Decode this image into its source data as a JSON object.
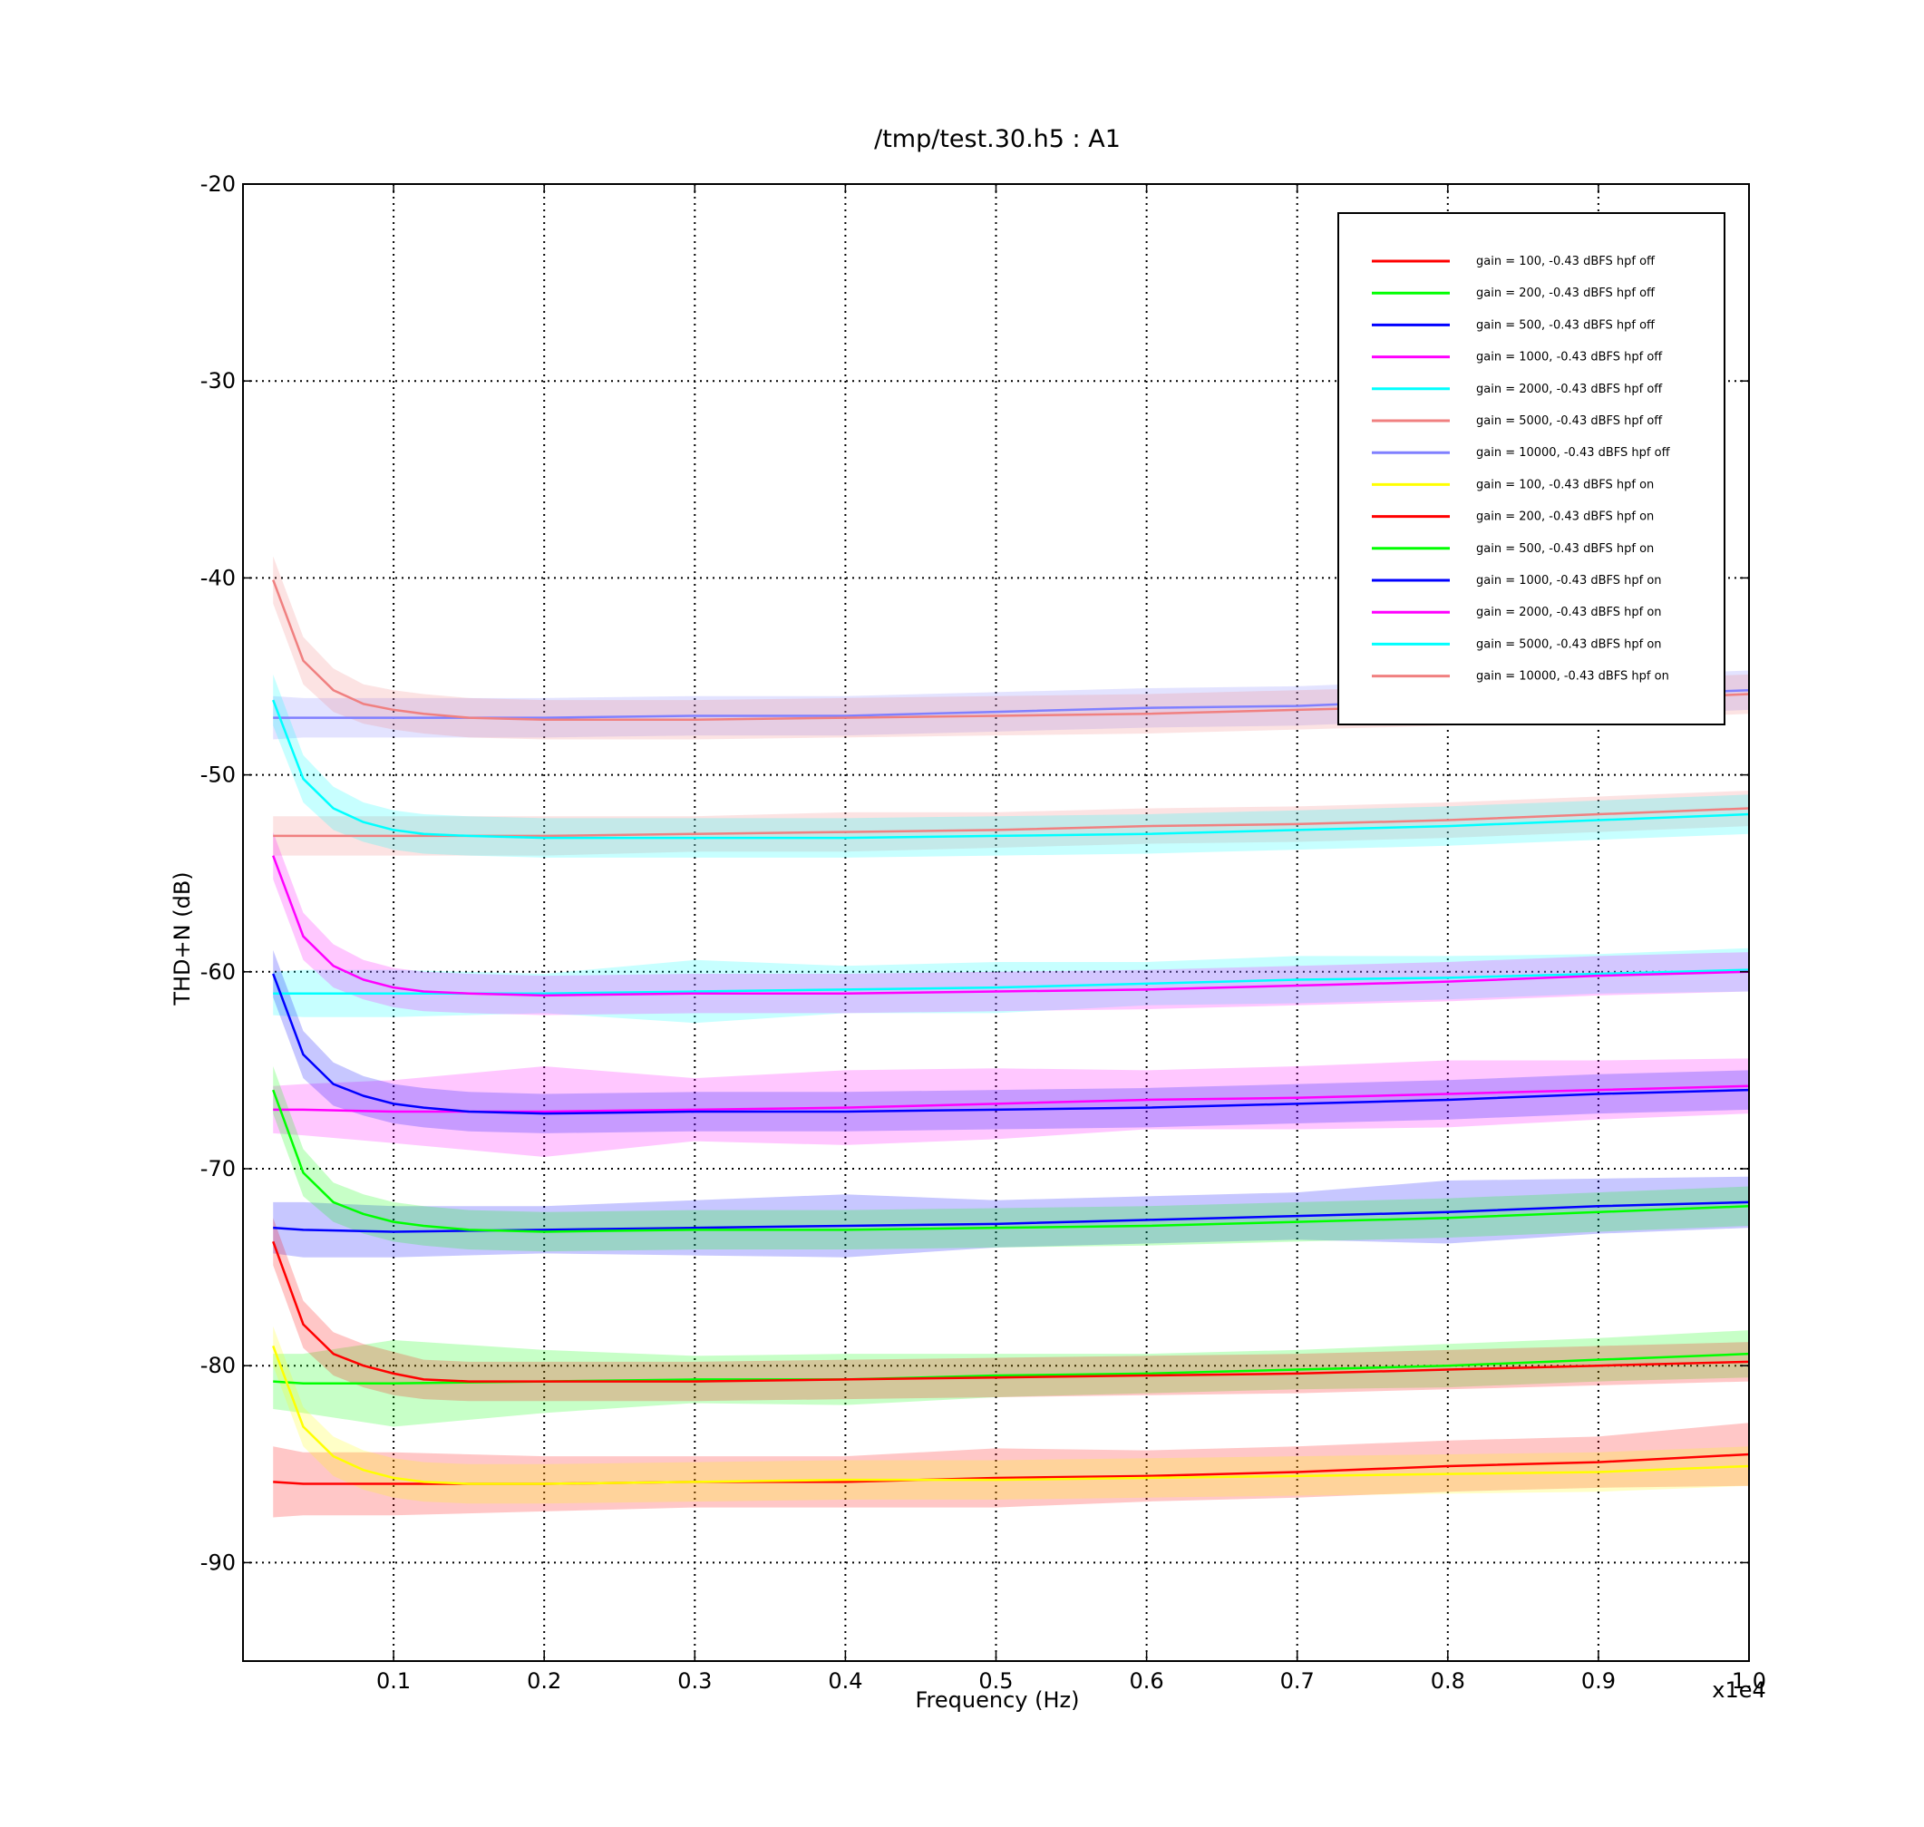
{
  "chart_data": {
    "type": "line",
    "title": "/tmp/test.30.h5 : A1",
    "xlabel": "Frequency (Hz)",
    "ylabel": "THD+N (dB)",
    "x_multiplier_label": "x1e4",
    "xlim": [
      0.0,
      1.0
    ],
    "ylim": [
      -95,
      -20
    ],
    "x_ticks": [
      0.1,
      0.2,
      0.3,
      0.4,
      0.5,
      0.6,
      0.7,
      0.8,
      0.9,
      1.0
    ],
    "x_tick_labels": [
      "0.1",
      "0.2",
      "0.3",
      "0.4",
      "0.5",
      "0.6",
      "0.7",
      "0.8",
      "0.9",
      "1.0"
    ],
    "y_ticks": [
      -90,
      -80,
      -70,
      -60,
      -50,
      -40,
      -30,
      -20
    ],
    "y_tick_labels": [
      "-90",
      "-80",
      "-70",
      "-60",
      "-50",
      "-40",
      "-30",
      "-20"
    ],
    "grid": true,
    "legend_position": "top-right",
    "band_opacity": 0.22,
    "series": [
      {
        "name": "gain = 100, -0.43 dBFS  hpf off",
        "color": "#ff0000",
        "x": [
          0.02,
          0.04,
          0.1,
          0.2,
          0.3,
          0.4,
          0.5,
          0.6,
          0.7,
          0.8,
          0.9,
          1.0
        ],
        "y": [
          -85.9,
          -86.0,
          -86.0,
          -86.0,
          -85.9,
          -85.9,
          -85.7,
          -85.6,
          -85.4,
          -85.1,
          -84.9,
          -84.5
        ],
        "band": [
          1.8,
          1.6,
          1.6,
          1.4,
          1.3,
          1.3,
          1.5,
          1.3,
          1.3,
          1.3,
          1.3,
          1.6
        ]
      },
      {
        "name": "gain = 200, -0.43 dBFS  hpf off",
        "color": "#00ff00",
        "x": [
          0.02,
          0.04,
          0.1,
          0.2,
          0.3,
          0.4,
          0.5,
          0.6,
          0.7,
          0.8,
          0.9,
          1.0
        ],
        "y": [
          -80.8,
          -80.9,
          -80.9,
          -80.8,
          -80.7,
          -80.7,
          -80.5,
          -80.4,
          -80.2,
          -80.0,
          -79.7,
          -79.4
        ],
        "band": [
          1.4,
          1.5,
          2.2,
          1.6,
          1.2,
          1.3,
          1.1,
          1.0,
          1.0,
          1.1,
          1.1,
          1.2
        ]
      },
      {
        "name": "gain = 500, -0.43 dBFS  hpf off",
        "color": "#0000ff",
        "x": [
          0.02,
          0.04,
          0.1,
          0.2,
          0.3,
          0.4,
          0.5,
          0.6,
          0.7,
          0.8,
          0.9,
          1.0
        ],
        "y": [
          -73.0,
          -73.1,
          -73.2,
          -73.1,
          -73.0,
          -72.9,
          -72.8,
          -72.6,
          -72.4,
          -72.2,
          -71.9,
          -71.7
        ],
        "band": [
          1.3,
          1.4,
          1.3,
          1.2,
          1.4,
          1.6,
          1.2,
          1.2,
          1.2,
          1.6,
          1.4,
          1.3
        ]
      },
      {
        "name": "gain = 1000, -0.43 dBFS  hpf off",
        "color": "#ff00ff",
        "x": [
          0.02,
          0.04,
          0.1,
          0.2,
          0.3,
          0.4,
          0.5,
          0.6,
          0.7,
          0.8,
          0.9,
          1.0
        ],
        "y": [
          -67.0,
          -67.0,
          -67.1,
          -67.1,
          -67.0,
          -66.9,
          -66.7,
          -66.5,
          -66.4,
          -66.2,
          -66.0,
          -65.8
        ],
        "band": [
          1.2,
          1.3,
          1.6,
          2.3,
          1.6,
          1.9,
          1.8,
          1.5,
          1.6,
          1.7,
          1.5,
          1.4
        ]
      },
      {
        "name": "gain = 2000, -0.43 dBFS  hpf off",
        "color": "#00ffff",
        "x": [
          0.02,
          0.04,
          0.1,
          0.2,
          0.3,
          0.4,
          0.5,
          0.6,
          0.7,
          0.8,
          0.9,
          1.0
        ],
        "y": [
          -61.1,
          -61.1,
          -61.1,
          -61.1,
          -61.0,
          -60.9,
          -60.8,
          -60.6,
          -60.4,
          -60.3,
          -60.1,
          -59.9
        ],
        "band": [
          1.1,
          1.2,
          1.2,
          1.0,
          1.6,
          1.2,
          1.3,
          1.1,
          1.2,
          1.1,
          1.0,
          1.1
        ]
      },
      {
        "name": "gain = 5000, -0.43 dBFS  hpf off",
        "color": "#f08080",
        "x": [
          0.02,
          0.04,
          0.1,
          0.2,
          0.3,
          0.4,
          0.5,
          0.6,
          0.7,
          0.8,
          0.9,
          1.0
        ],
        "y": [
          -53.1,
          -53.1,
          -53.1,
          -53.1,
          -53.0,
          -52.9,
          -52.8,
          -52.6,
          -52.5,
          -52.3,
          -52.0,
          -51.7
        ],
        "band": [
          1.0,
          1.0,
          1.0,
          1.0,
          0.9,
          1.0,
          0.9,
          0.9,
          0.9,
          0.9,
          0.9,
          0.9
        ]
      },
      {
        "name": "gain = 10000, -0.43 dBFS  hpf off",
        "color": "#8080ff",
        "x": [
          0.02,
          0.04,
          0.1,
          0.2,
          0.3,
          0.4,
          0.5,
          0.6,
          0.7,
          0.8,
          0.9,
          1.0
        ],
        "y": [
          -47.1,
          -47.1,
          -47.1,
          -47.1,
          -47.0,
          -47.0,
          -46.8,
          -46.6,
          -46.5,
          -46.2,
          -46.0,
          -45.7
        ],
        "band": [
          1.1,
          1.0,
          1.0,
          1.0,
          1.0,
          1.0,
          1.0,
          1.0,
          1.0,
          1.0,
          1.0,
          1.0
        ]
      },
      {
        "name": "gain = 100, -0.43 dBFS  hpf on",
        "color": "#ffff00",
        "x": [
          0.02,
          0.04,
          0.06,
          0.08,
          0.1,
          0.12,
          0.15,
          0.2,
          0.3,
          0.4,
          0.5,
          0.6,
          0.7,
          0.8,
          0.9,
          1.0
        ],
        "y": [
          -79.0,
          -83.1,
          -84.6,
          -85.3,
          -85.7,
          -85.9,
          -86.0,
          -86.0,
          -85.9,
          -85.8,
          -85.8,
          -85.7,
          -85.6,
          -85.5,
          -85.4,
          -85.1
        ],
        "band": [
          1.0,
          1.0,
          1.0,
          1.0,
          1.0,
          1.0,
          1.0,
          1.0,
          1.0,
          1.0,
          1.0,
          1.0,
          1.0,
          1.0,
          1.0,
          1.0
        ]
      },
      {
        "name": "gain = 200, -0.43 dBFS  hpf on",
        "color": "#ff0000",
        "x": [
          0.02,
          0.04,
          0.06,
          0.08,
          0.1,
          0.12,
          0.15,
          0.2,
          0.3,
          0.4,
          0.5,
          0.6,
          0.7,
          0.8,
          0.9,
          1.0
        ],
        "y": [
          -73.7,
          -77.9,
          -79.4,
          -80.0,
          -80.4,
          -80.7,
          -80.8,
          -80.8,
          -80.8,
          -80.7,
          -80.6,
          -80.5,
          -80.4,
          -80.2,
          -80.0,
          -79.8
        ],
        "band": [
          1.2,
          1.2,
          1.1,
          1.1,
          1.1,
          1.0,
          1.0,
          1.0,
          1.0,
          1.0,
          1.0,
          1.0,
          1.0,
          1.0,
          1.0,
          1.0
        ]
      },
      {
        "name": "gain = 500, -0.43 dBFS  hpf on",
        "color": "#00ff00",
        "x": [
          0.02,
          0.04,
          0.06,
          0.08,
          0.1,
          0.12,
          0.15,
          0.2,
          0.3,
          0.4,
          0.5,
          0.6,
          0.7,
          0.8,
          0.9,
          1.0
        ],
        "y": [
          -66.0,
          -70.2,
          -71.7,
          -72.3,
          -72.7,
          -72.9,
          -73.1,
          -73.2,
          -73.1,
          -73.1,
          -73.0,
          -72.9,
          -72.7,
          -72.5,
          -72.2,
          -71.9
        ],
        "band": [
          1.2,
          1.2,
          1.0,
          1.0,
          1.0,
          1.0,
          1.0,
          1.0,
          1.0,
          1.0,
          1.0,
          1.0,
          1.0,
          1.0,
          1.0,
          1.0
        ]
      },
      {
        "name": "gain = 1000, -0.43 dBFS  hpf on",
        "color": "#0000ff",
        "x": [
          0.02,
          0.04,
          0.06,
          0.08,
          0.1,
          0.12,
          0.15,
          0.2,
          0.3,
          0.4,
          0.5,
          0.6,
          0.7,
          0.8,
          0.9,
          1.0
        ],
        "y": [
          -60.1,
          -64.2,
          -65.7,
          -66.3,
          -66.7,
          -66.9,
          -67.1,
          -67.2,
          -67.1,
          -67.1,
          -67.0,
          -66.9,
          -66.7,
          -66.5,
          -66.2,
          -66.0
        ],
        "band": [
          1.2,
          1.2,
          1.1,
          1.0,
          1.0,
          1.0,
          1.0,
          1.0,
          1.0,
          1.0,
          1.0,
          1.0,
          1.0,
          1.0,
          1.0,
          1.0
        ]
      },
      {
        "name": "gain = 2000, -0.43 dBFS  hpf on",
        "color": "#ff00ff",
        "x": [
          0.02,
          0.04,
          0.06,
          0.08,
          0.1,
          0.12,
          0.15,
          0.2,
          0.3,
          0.4,
          0.5,
          0.6,
          0.7,
          0.8,
          0.9,
          1.0
        ],
        "y": [
          -54.1,
          -58.2,
          -59.7,
          -60.4,
          -60.8,
          -61.0,
          -61.1,
          -61.2,
          -61.1,
          -61.1,
          -61.0,
          -60.9,
          -60.7,
          -60.5,
          -60.2,
          -60.0
        ],
        "band": [
          1.2,
          1.2,
          1.1,
          1.0,
          1.0,
          1.0,
          1.0,
          1.0,
          1.0,
          1.0,
          1.0,
          1.0,
          1.0,
          1.0,
          1.0,
          1.0
        ]
      },
      {
        "name": "gain = 5000, -0.43 dBFS  hpf on",
        "color": "#00ffff",
        "x": [
          0.02,
          0.04,
          0.06,
          0.08,
          0.1,
          0.12,
          0.15,
          0.2,
          0.3,
          0.4,
          0.5,
          0.6,
          0.7,
          0.8,
          0.9,
          1.0
        ],
        "y": [
          -46.2,
          -50.2,
          -51.7,
          -52.4,
          -52.8,
          -53.0,
          -53.1,
          -53.2,
          -53.2,
          -53.2,
          -53.1,
          -53.0,
          -52.8,
          -52.6,
          -52.3,
          -52.0
        ],
        "band": [
          1.3,
          1.2,
          1.1,
          1.0,
          1.0,
          1.0,
          1.0,
          1.0,
          1.0,
          1.0,
          1.0,
          1.0,
          1.0,
          1.0,
          1.0,
          1.0
        ]
      },
      {
        "name": "gain = 10000, -0.43 dBFS  hpf on",
        "color": "#f08080",
        "x": [
          0.02,
          0.04,
          0.06,
          0.08,
          0.1,
          0.12,
          0.15,
          0.2,
          0.3,
          0.4,
          0.5,
          0.6,
          0.7,
          0.8,
          0.9,
          1.0
        ],
        "y": [
          -40.1,
          -44.2,
          -45.7,
          -46.4,
          -46.7,
          -46.9,
          -47.1,
          -47.2,
          -47.2,
          -47.1,
          -47.0,
          -46.9,
          -46.7,
          -46.5,
          -46.2,
          -45.9
        ],
        "band": [
          1.2,
          1.2,
          1.1,
          1.0,
          1.0,
          1.0,
          1.0,
          1.0,
          1.0,
          1.0,
          1.0,
          1.0,
          1.0,
          1.0,
          1.0,
          1.0
        ]
      }
    ]
  }
}
